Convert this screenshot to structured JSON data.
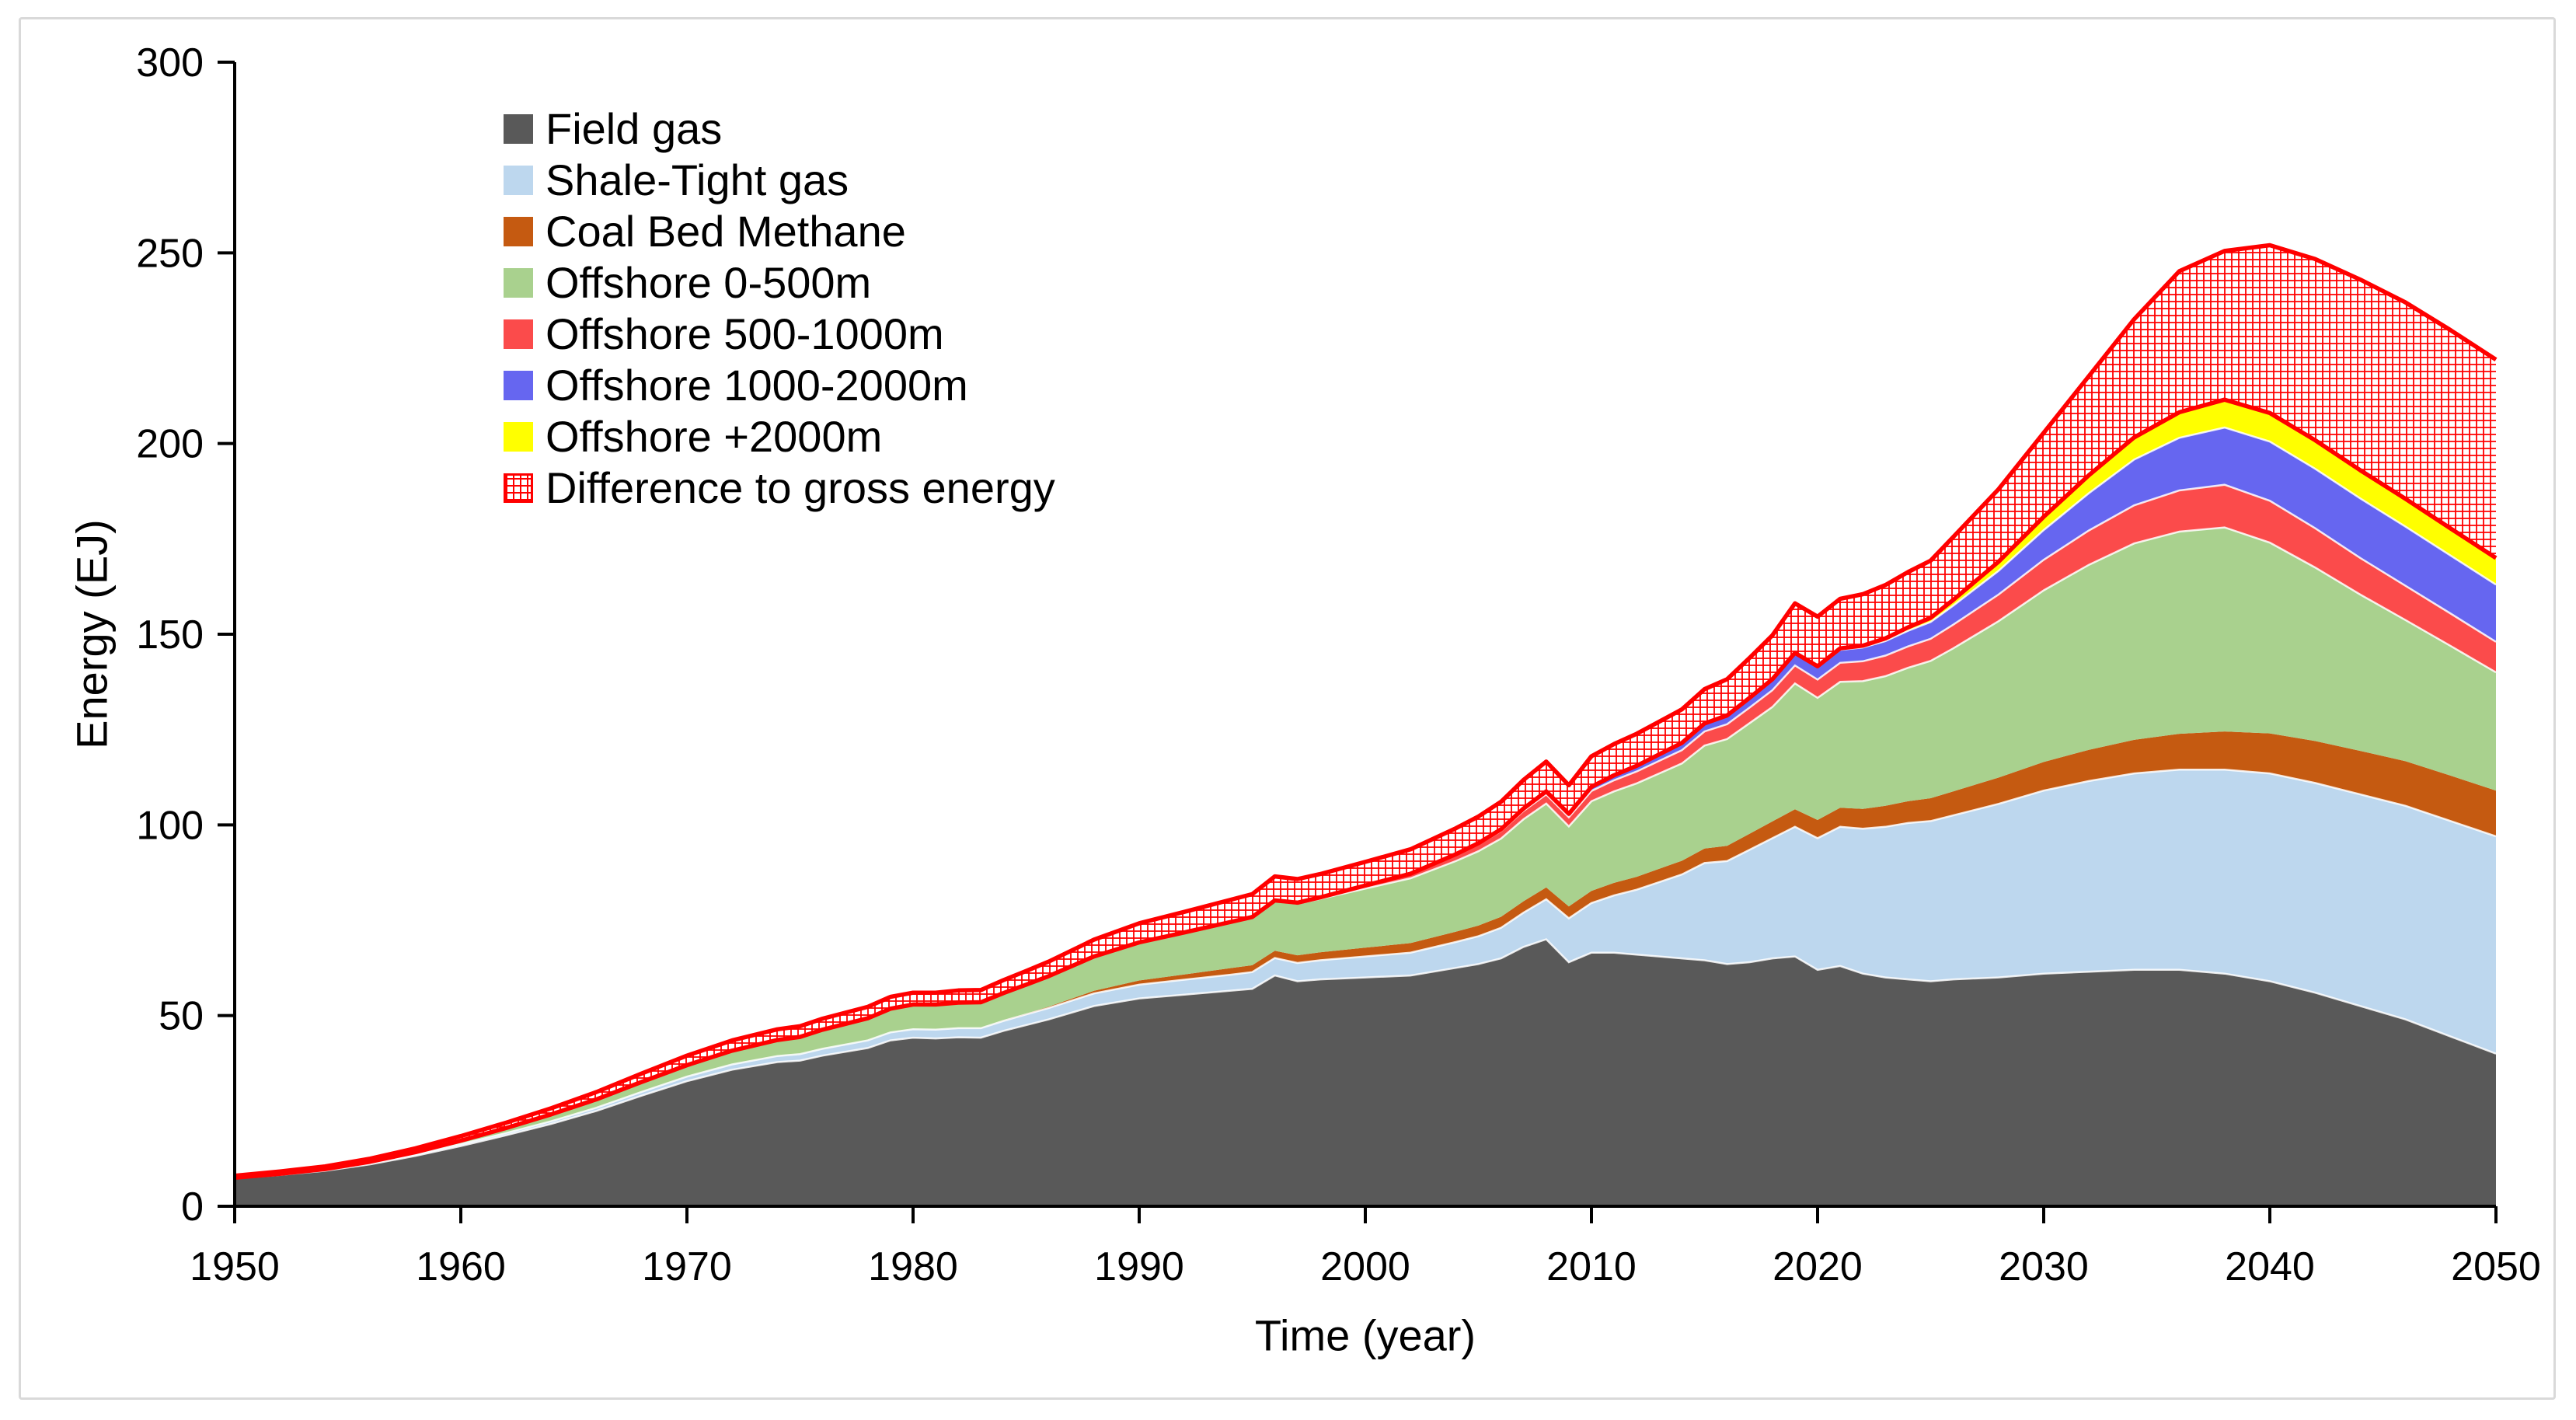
{
  "figure": {
    "background": "#FFFFFF",
    "border_color": "#D9D9D9"
  },
  "chart_data": {
    "type": "area",
    "stacked": true,
    "title": "",
    "xlabel": "Time (year)",
    "ylabel": "Energy (EJ)",
    "xlim": [
      1950,
      2050
    ],
    "ylim": [
      0,
      300
    ],
    "x_ticks": [
      1950,
      1960,
      1970,
      1980,
      1990,
      2000,
      2010,
      2020,
      2030,
      2040,
      2050
    ],
    "y_ticks": [
      0,
      50,
      100,
      150,
      200,
      250,
      300
    ],
    "grid": false,
    "legend_position": "upper-left-inside",
    "outline_color": "#FF0000",
    "separator_color": "#FFFFFF",
    "years": [
      1950,
      1952,
      1954,
      1956,
      1958,
      1960,
      1962,
      1964,
      1966,
      1968,
      1970,
      1972,
      1974,
      1975,
      1976,
      1978,
      1979,
      1980,
      1981,
      1982,
      1983,
      1984,
      1985,
      1986,
      1988,
      1990,
      1992,
      1994,
      1995,
      1996,
      1997,
      1998,
      2000,
      2002,
      2004,
      2005,
      2006,
      2007,
      2008,
      2009,
      2010,
      2011,
      2012,
      2013,
      2014,
      2015,
      2016,
      2017,
      2018,
      2019,
      2020,
      2021,
      2022,
      2023,
      2024,
      2025,
      2026,
      2028,
      2030,
      2032,
      2034,
      2036,
      2038,
      2040,
      2042,
      2044,
      2046,
      2048,
      2050
    ],
    "series": [
      {
        "name": "Field gas",
        "color": "#595959",
        "values": [
          7.3,
          8.2,
          9.3,
          11,
          13.2,
          15.8,
          18.6,
          21.6,
          25,
          29,
          32.8,
          35.8,
          37.8,
          38.2,
          39.5,
          41.5,
          43.5,
          44.2,
          44,
          44.3,
          44.2,
          46,
          47.5,
          49,
          52.5,
          54.5,
          55.5,
          56.5,
          57,
          60.5,
          59,
          59.5,
          60,
          60.5,
          62.5,
          63.5,
          65,
          68,
          70,
          64,
          66.5,
          66.5,
          66,
          65.5,
          65,
          64.5,
          63.5,
          64,
          65,
          65.5,
          62,
          63,
          61,
          60,
          59.5,
          59,
          59.5,
          60,
          61,
          61.5,
          62,
          62,
          61,
          59,
          56,
          52.5,
          49,
          44.5,
          40
        ]
      },
      {
        "name": "Shale-Tight gas",
        "color": "#BDD7EE",
        "values": [
          0.1,
          0.15,
          0.2,
          0.3,
          0.4,
          0.5,
          0.6,
          0.7,
          0.85,
          1,
          1.2,
          1.4,
          1.6,
          1.7,
          1.8,
          2,
          2.1,
          2.2,
          2.3,
          2.4,
          2.5,
          2.6,
          2.8,
          3,
          3.3,
          3.6,
          3.9,
          4.2,
          4.4,
          4.6,
          4.8,
          5,
          5.5,
          6,
          6.8,
          7.3,
          8,
          9,
          10.5,
          11.5,
          13,
          15,
          17,
          19.5,
          22,
          25.5,
          27,
          29.5,
          31.5,
          34,
          34.5,
          36.5,
          38,
          39.5,
          41,
          42,
          43,
          45.5,
          48,
          50,
          51.5,
          52.5,
          53.5,
          54.5,
          55,
          55.5,
          56,
          56.5,
          57
        ]
      },
      {
        "name": "Coal Bed Methane",
        "color": "#C55A11",
        "values": [
          0,
          0,
          0,
          0,
          0,
          0,
          0,
          0,
          0,
          0,
          0,
          0,
          0,
          0,
          0,
          0,
          0,
          0,
          0,
          0,
          0,
          0.1,
          0.2,
          0.35,
          0.7,
          1.1,
          1.4,
          1.7,
          1.8,
          1.9,
          2,
          2.1,
          2.3,
          2.5,
          2.7,
          2.8,
          2.9,
          3,
          3.1,
          3.1,
          3.2,
          3.3,
          3.4,
          3.5,
          3.6,
          3.8,
          4,
          4.2,
          4.4,
          4.6,
          4.8,
          5,
          5.2,
          5.5,
          5.7,
          6,
          6.3,
          6.9,
          7.5,
          8.2,
          8.8,
          9.4,
          10,
          10.5,
          11,
          11.4,
          11.7,
          11.9,
          12
        ]
      },
      {
        "name": "Offshore 0-500m",
        "color": "#A9D18E",
        "values": [
          0.1,
          0.15,
          0.25,
          0.4,
          0.6,
          0.9,
          1.3,
          1.8,
          2.2,
          2.6,
          3,
          3.6,
          4.2,
          4.5,
          5,
          5.8,
          6.2,
          6.5,
          6.6,
          6.7,
          6.8,
          7.2,
          7.6,
          8,
          9,
          10,
          11,
          12,
          12.5,
          13,
          13.5,
          14,
          15.5,
          17,
          18.5,
          19.5,
          20.5,
          21.5,
          22,
          21,
          23.5,
          24,
          24.5,
          25,
          25.5,
          27,
          28,
          29,
          30,
          33,
          32,
          33,
          33.5,
          34,
          35,
          36,
          37.5,
          41,
          45,
          48.5,
          51.5,
          53,
          53.5,
          50,
          45.5,
          41,
          37,
          34,
          31
        ]
      },
      {
        "name": "Offshore 500-1000m",
        "color": "#FB4B4B",
        "values": [
          0,
          0,
          0,
          0,
          0,
          0,
          0,
          0,
          0,
          0,
          0,
          0,
          0,
          0,
          0,
          0,
          0,
          0,
          0,
          0,
          0,
          0,
          0,
          0,
          0,
          0,
          0,
          0.1,
          0.15,
          0.2,
          0.3,
          0.4,
          0.8,
          1.2,
          1.6,
          1.8,
          2,
          2.2,
          2.4,
          2.4,
          2.7,
          2.9,
          3.1,
          3.3,
          3.5,
          3.7,
          3.9,
          4.1,
          4.4,
          4.7,
          4.8,
          5,
          5.2,
          5.4,
          5.6,
          5.8,
          6.2,
          7,
          8,
          9,
          10,
          10.8,
          11.2,
          11,
          10.3,
          9.6,
          9,
          8.5,
          8
        ]
      },
      {
        "name": "Offshore 1000-2000m",
        "color": "#6666F0",
        "values": [
          0,
          0,
          0,
          0,
          0,
          0,
          0,
          0,
          0,
          0,
          0,
          0,
          0,
          0,
          0,
          0,
          0,
          0,
          0,
          0,
          0,
          0,
          0,
          0,
          0,
          0,
          0,
          0,
          0,
          0,
          0,
          0,
          0,
          0,
          0.2,
          0.3,
          0.45,
          0.6,
          0.8,
          0.9,
          1.1,
          1.3,
          1.5,
          1.7,
          1.9,
          2.1,
          2.3,
          2.5,
          2.8,
          3.1,
          3.2,
          3.4,
          3.6,
          3.8,
          4.1,
          4.4,
          5,
          6.2,
          7.8,
          9.8,
          12,
          13.8,
          15,
          15.5,
          15.6,
          15.6,
          15.5,
          15.2,
          15
        ]
      },
      {
        "name": "Offshore +2000m",
        "color": "#FFFF00",
        "values": [
          0,
          0,
          0,
          0,
          0,
          0,
          0,
          0,
          0,
          0,
          0,
          0,
          0,
          0,
          0,
          0,
          0,
          0,
          0,
          0,
          0,
          0,
          0,
          0,
          0,
          0,
          0,
          0,
          0,
          0,
          0,
          0,
          0,
          0,
          0,
          0,
          0,
          0,
          0,
          0,
          0,
          0,
          0,
          0,
          0,
          0,
          0,
          0.05,
          0.1,
          0.2,
          0.3,
          0.4,
          0.5,
          0.7,
          0.9,
          1.1,
          1.5,
          2.4,
          3.5,
          4.7,
          5.8,
          6.7,
          7.3,
          7.5,
          7.5,
          7.4,
          7.3,
          7.1,
          7
        ]
      },
      {
        "name": "Difference to gross energy",
        "color": "#FF0000",
        "hatch": true,
        "values": [
          0.5,
          0.6,
          0.7,
          0.8,
          1,
          1.2,
          1.4,
          1.6,
          1.9,
          2.2,
          2.5,
          2.7,
          2.8,
          2.8,
          2.9,
          3,
          3.1,
          3.1,
          3.1,
          3.2,
          3.2,
          3.4,
          3.6,
          3.8,
          4.4,
          5,
          5.4,
          5.8,
          6,
          6.3,
          6.2,
          6.1,
          6.2,
          6.4,
          6.8,
          7,
          7.2,
          7.5,
          7.8,
          7.5,
          8,
          8.2,
          8.4,
          8.6,
          8.8,
          9,
          9.5,
          10.5,
          11.5,
          13,
          13,
          13,
          13.5,
          14,
          14.5,
          15,
          16.5,
          19,
          22,
          26,
          31,
          37,
          39,
          44,
          47.5,
          50,
          51.5,
          52,
          52
        ]
      }
    ]
  }
}
